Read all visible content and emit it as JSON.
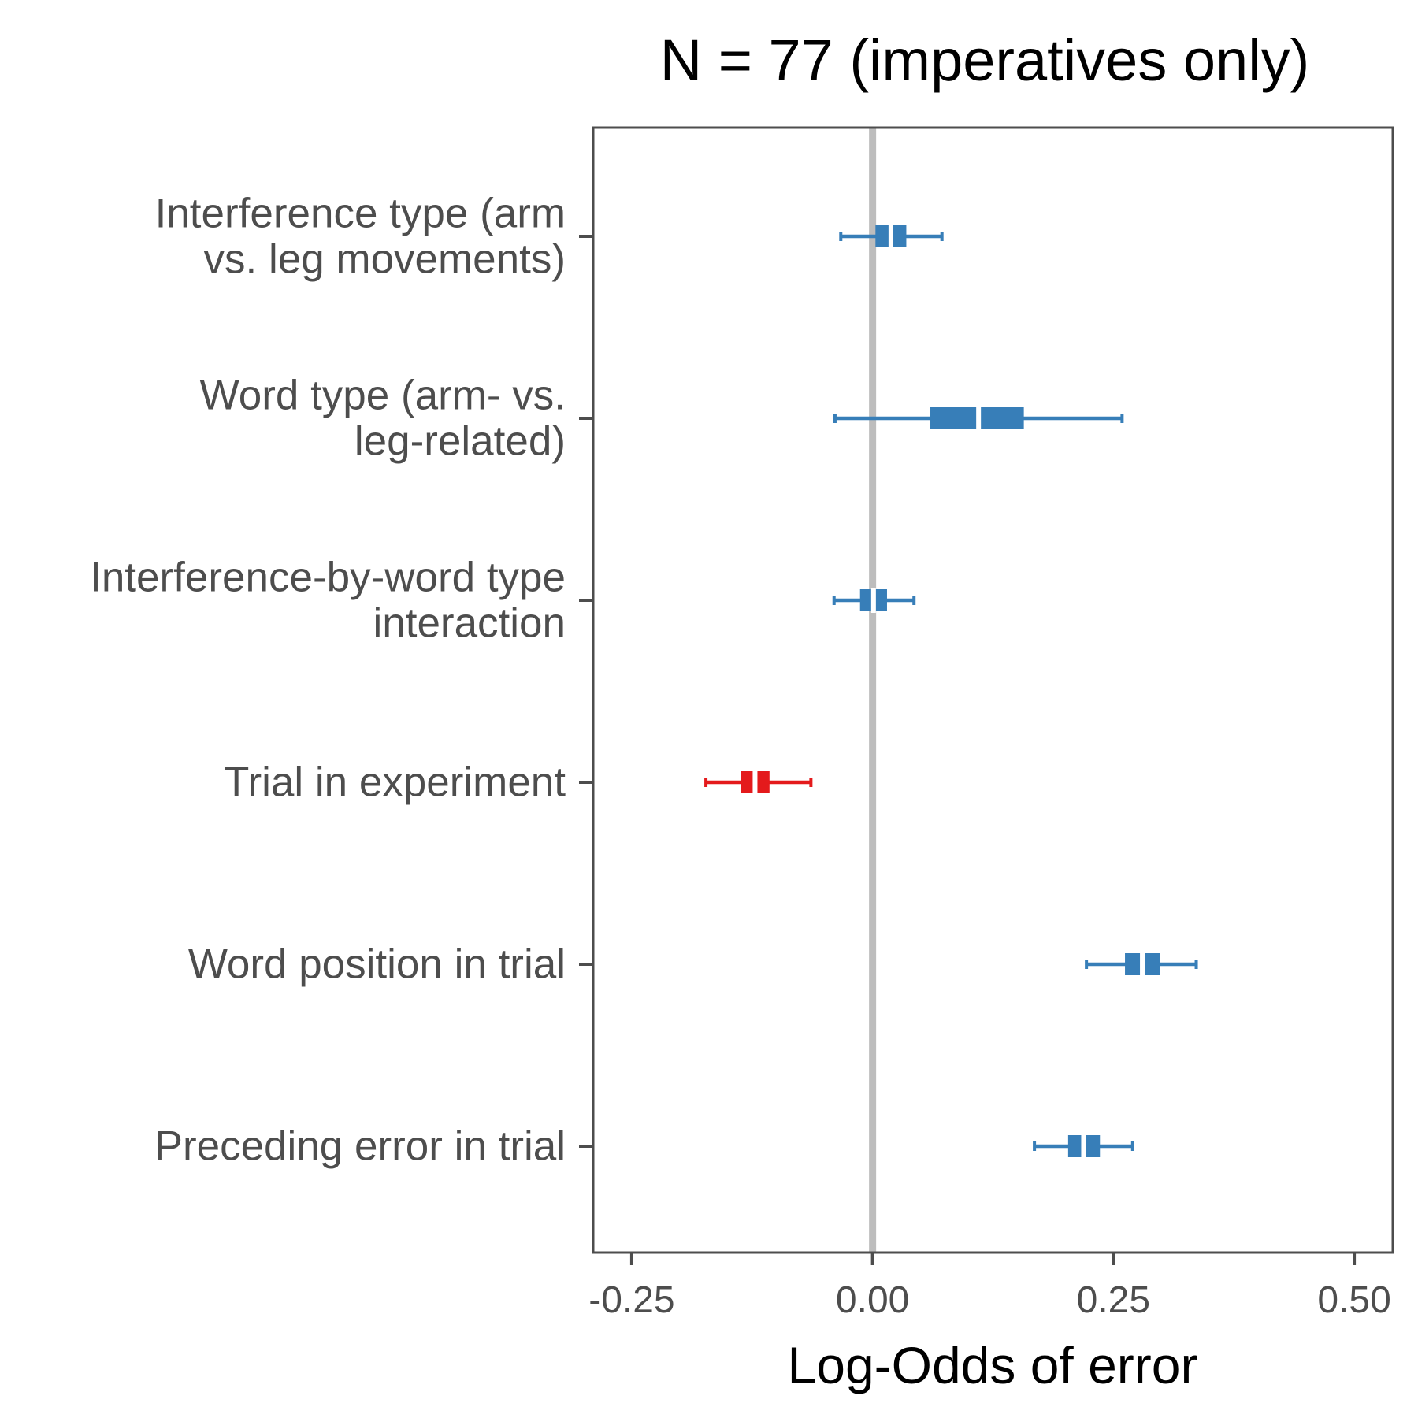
{
  "chart_data": {
    "type": "forest",
    "title": "N = 77 (imperatives only)",
    "xlabel": "Log-Odds of error",
    "ylabel": "",
    "xlim": [
      -0.29,
      0.54
    ],
    "xticks": [
      -0.25,
      0.0,
      0.25,
      0.5
    ],
    "xtick_labels": [
      "-0.25",
      "0.00",
      "0.25",
      "0.50"
    ],
    "reference_line": 0.0,
    "grid": false,
    "colors": {
      "positive": "#377eb8",
      "negative": "#e41a1c",
      "reference": "#bdbdbd"
    },
    "rows": [
      {
        "label_lines": [
          "Interference type (arm",
          "vs. leg movements)"
        ],
        "estimate": 0.019,
        "inner": [
          0.003,
          0.035
        ],
        "outer": [
          -0.033,
          0.072
        ],
        "color": "#377eb8"
      },
      {
        "label_lines": [
          "Word type (arm- vs.",
          "leg-related)"
        ],
        "estimate": 0.11,
        "inner": [
          0.06,
          0.157
        ],
        "outer": [
          -0.039,
          0.259
        ],
        "color": "#377eb8"
      },
      {
        "label_lines": [
          "Interference-by-word type",
          "interaction"
        ],
        "estimate": 0.001,
        "inner": [
          -0.013,
          0.015
        ],
        "outer": [
          -0.04,
          0.043
        ],
        "color": "#377eb8"
      },
      {
        "label_lines": [
          "Trial in experiment"
        ],
        "estimate": -0.122,
        "inner": [
          -0.137,
          -0.107
        ],
        "outer": [
          -0.173,
          -0.064
        ],
        "color": "#e41a1c"
      },
      {
        "label_lines": [
          "Word position in trial"
        ],
        "estimate": 0.28,
        "inner": [
          0.262,
          0.298
        ],
        "outer": [
          0.222,
          0.336
        ],
        "color": "#377eb8"
      },
      {
        "label_lines": [
          "Preceding error in trial"
        ],
        "estimate": 0.219,
        "inner": [
          0.203,
          0.236
        ],
        "outer": [
          0.168,
          0.27
        ],
        "color": "#377eb8"
      }
    ]
  }
}
